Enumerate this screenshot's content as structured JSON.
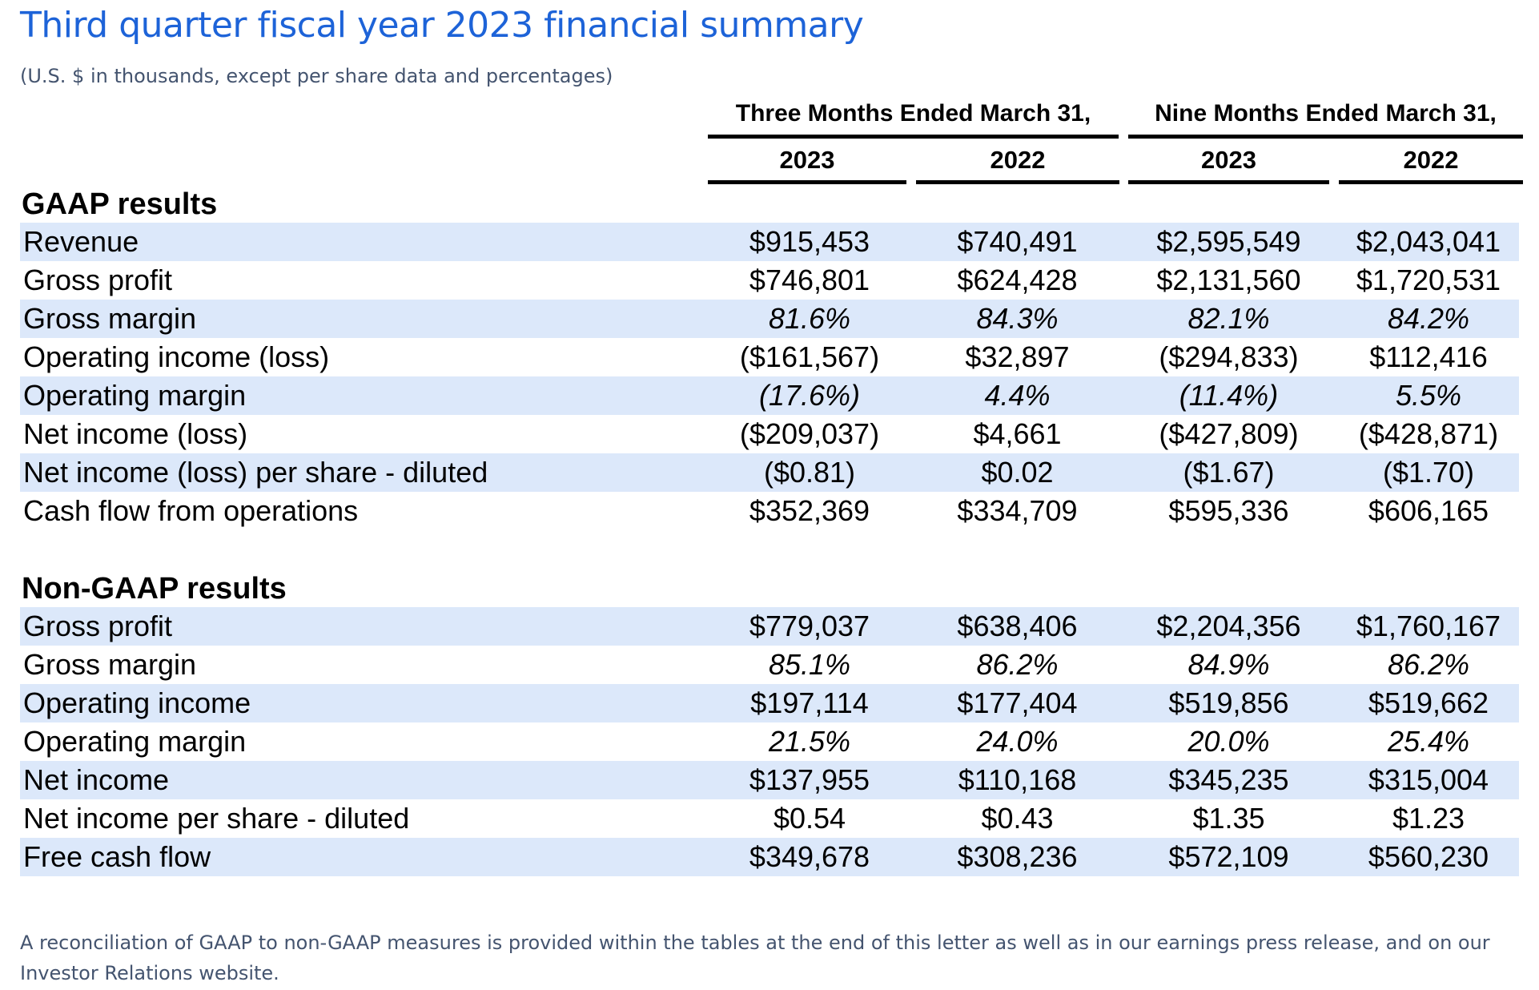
{
  "page": {
    "title": "Third quarter fiscal year 2023 financial summary",
    "subtitle": "(U.S. $ in thousands, except per share data and percentages)",
    "footnote": "A reconciliation of GAAP to non-GAAP measures is provided within the tables at the end of this letter as well as in our earnings press release, and on our Investor Relations website."
  },
  "colors": {
    "title_blue": "#1D63D8",
    "slate_text": "#44546F",
    "row_stripe": "#DCE8FA",
    "table_text": "#000000"
  },
  "table": {
    "column_groups": [
      {
        "label": "Three Months Ended March 31,",
        "years": [
          "2023",
          "2022"
        ]
      },
      {
        "label": "Nine Months Ended March 31,",
        "years": [
          "2023",
          "2022"
        ]
      }
    ],
    "sections": [
      {
        "heading": "GAAP results",
        "rows": [
          {
            "label": "Revenue",
            "italic": false,
            "values": [
              "$915,453",
              "$740,491",
              "$2,595,549",
              "$2,043,041"
            ]
          },
          {
            "label": "Gross profit",
            "italic": false,
            "values": [
              "$746,801",
              "$624,428",
              "$2,131,560",
              "$1,720,531"
            ]
          },
          {
            "label": "Gross margin",
            "italic": true,
            "values": [
              "81.6%",
              "84.3%",
              "82.1%",
              "84.2%"
            ]
          },
          {
            "label": "Operating income (loss)",
            "italic": false,
            "values": [
              "($161,567)",
              "$32,897",
              "($294,833)",
              "$112,416"
            ]
          },
          {
            "label": "Operating margin",
            "italic": true,
            "values": [
              "(17.6%)",
              "4.4%",
              "(11.4%)",
              "5.5%"
            ]
          },
          {
            "label": "Net income (loss)",
            "italic": false,
            "values": [
              "($209,037)",
              "$4,661",
              "($427,809)",
              "($428,871)"
            ]
          },
          {
            "label": "Net income (loss) per share - diluted",
            "italic": false,
            "values": [
              "($0.81)",
              "$0.02",
              "($1.67)",
              "($1.70)"
            ]
          },
          {
            "label": "Cash flow from operations",
            "italic": false,
            "values": [
              "$352,369",
              "$334,709",
              "$595,336",
              "$606,165"
            ]
          }
        ]
      },
      {
        "heading": "Non-GAAP results",
        "rows": [
          {
            "label": "Gross profit",
            "italic": false,
            "values": [
              "$779,037",
              "$638,406",
              "$2,204,356",
              "$1,760,167"
            ]
          },
          {
            "label": "Gross margin",
            "italic": true,
            "values": [
              "85.1%",
              "86.2%",
              "84.9%",
              "86.2%"
            ]
          },
          {
            "label": "Operating income",
            "italic": false,
            "values": [
              "$197,114",
              "$177,404",
              "$519,856",
              "$519,662"
            ]
          },
          {
            "label": "Operating margin",
            "italic": true,
            "values": [
              "21.5%",
              "24.0%",
              "20.0%",
              "25.4%"
            ]
          },
          {
            "label": "Net income",
            "italic": false,
            "values": [
              "$137,955",
              "$110,168",
              "$345,235",
              "$315,004"
            ]
          },
          {
            "label": "Net income per share - diluted",
            "italic": false,
            "values": [
              "$0.54",
              "$0.43",
              "$1.35",
              "$1.23"
            ]
          },
          {
            "label": "Free cash flow",
            "italic": false,
            "values": [
              "$349,678",
              "$308,236",
              "$572,109",
              "$560,230"
            ]
          }
        ]
      }
    ]
  }
}
